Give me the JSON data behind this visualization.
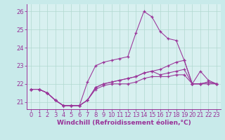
{
  "background_color": "#c8eaea",
  "plot_bg_color": "#d8f0f0",
  "grid_color": "#b0d8d0",
  "line_color": "#993399",
  "xlabel": "Windchill (Refroidissement éolien,°C)",
  "xlabel_fontsize": 6.5,
  "tick_fontsize": 6.0,
  "ylim": [
    20.6,
    26.4
  ],
  "yticks": [
    21,
    22,
    23,
    24,
    25,
    26
  ],
  "xlim": [
    -0.5,
    23.5
  ],
  "xticks": [
    0,
    1,
    2,
    3,
    4,
    5,
    6,
    7,
    8,
    9,
    10,
    11,
    12,
    13,
    14,
    15,
    16,
    17,
    18,
    19,
    20,
    21,
    22,
    23
  ],
  "series": [
    [
      21.7,
      21.7,
      21.5,
      21.1,
      20.8,
      20.8,
      20.8,
      21.1,
      21.8,
      22.0,
      22.1,
      22.2,
      22.3,
      22.4,
      22.6,
      22.7,
      22.8,
      23.0,
      23.2,
      23.3,
      22.0,
      22.0,
      22.1,
      22.0
    ],
    [
      21.7,
      21.7,
      21.5,
      21.1,
      20.8,
      20.8,
      20.8,
      22.1,
      23.0,
      23.2,
      23.3,
      23.4,
      23.5,
      24.8,
      26.0,
      25.7,
      24.9,
      24.5,
      24.4,
      23.3,
      22.0,
      22.7,
      22.2,
      22.0
    ],
    [
      21.7,
      21.7,
      21.5,
      21.1,
      20.8,
      20.8,
      20.8,
      21.1,
      21.8,
      22.0,
      22.1,
      22.2,
      22.3,
      22.4,
      22.6,
      22.7,
      22.5,
      22.6,
      22.7,
      22.8,
      22.0,
      22.0,
      22.1,
      22.0
    ],
    [
      21.7,
      21.7,
      21.5,
      21.1,
      20.8,
      20.8,
      20.8,
      21.1,
      21.7,
      21.9,
      22.0,
      22.0,
      22.0,
      22.1,
      22.3,
      22.4,
      22.4,
      22.4,
      22.5,
      22.5,
      22.0,
      22.0,
      22.0,
      22.0
    ]
  ]
}
